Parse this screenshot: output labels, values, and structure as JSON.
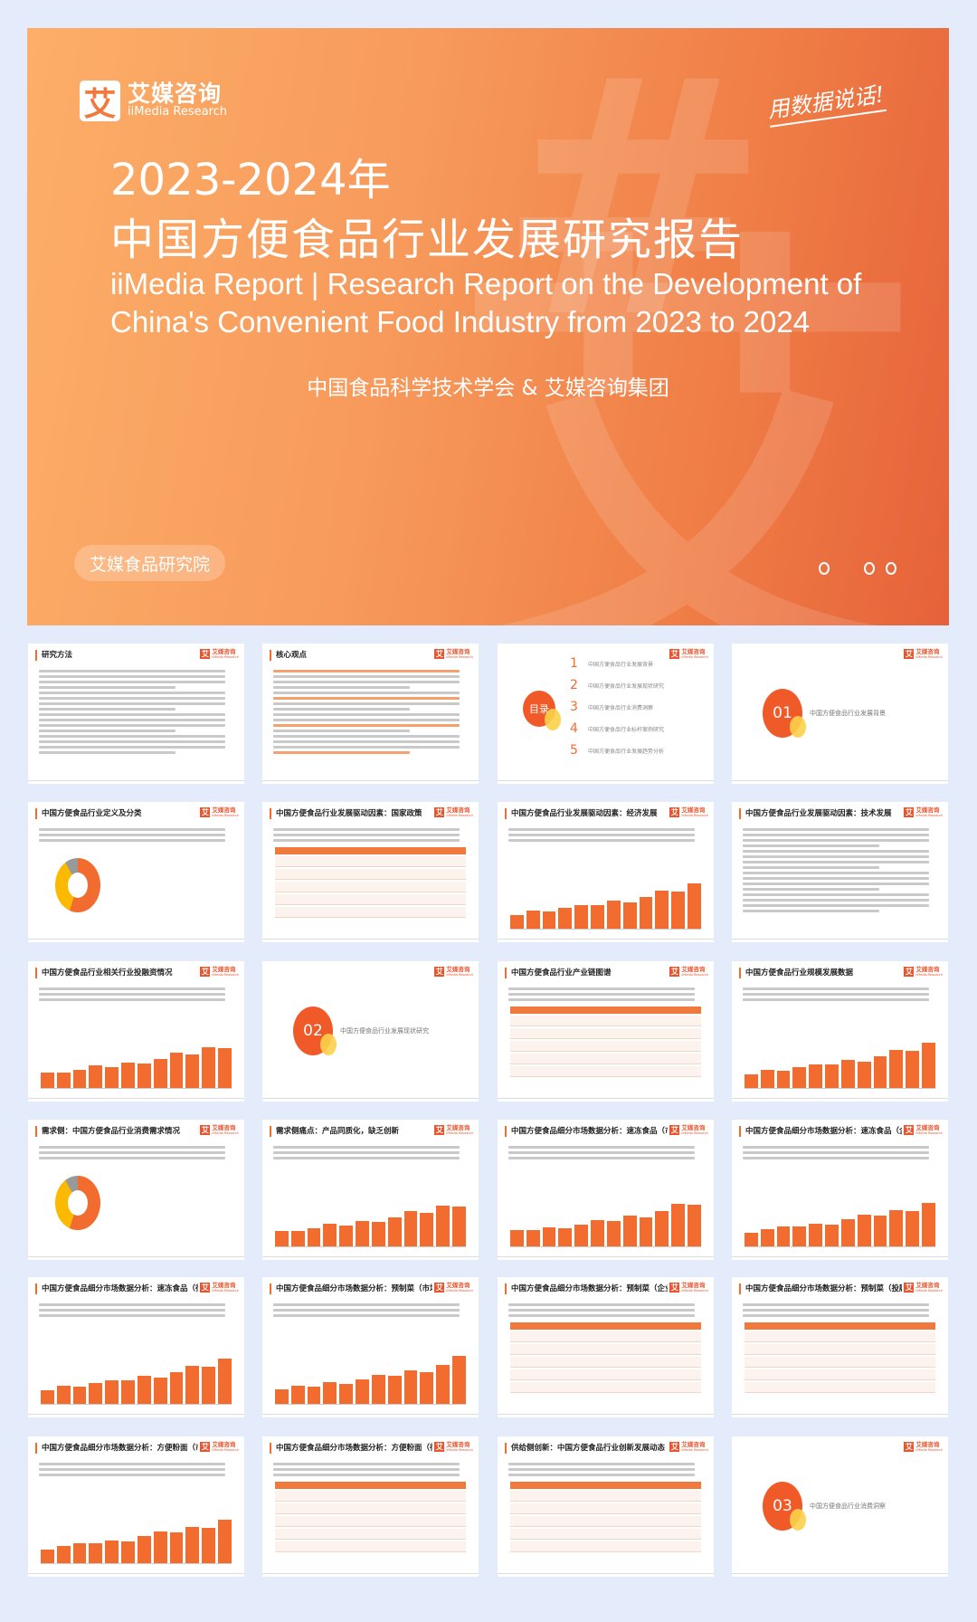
{
  "cover": {
    "logo_cn": "艾媒咨询",
    "logo_en": "iiMedia Research",
    "logo_mark": "艾",
    "slogan": "用数据说话!",
    "title_year": "2023-2024年",
    "title_cn": "中国方便食品行业发展研究报告",
    "title_en": "iiMedia Report | Research Report on the Development of China's Convenient Food Industry from 2023 to 2024",
    "publishers": "中国食品科学技术学会 & 艾媒咨询集团",
    "institute": "艾媒食品研究院",
    "watermark": "艾",
    "colors": {
      "gradient_start": "#fdae68",
      "gradient_end": "#e6623a"
    }
  },
  "slide_logo": {
    "mark": "艾",
    "cn": "艾媒咨询",
    "en": "iiMedia Research"
  },
  "toc": {
    "label": "目录",
    "items": [
      {
        "num": "1",
        "text": "中国方便食品行业发展背景"
      },
      {
        "num": "2",
        "text": "中国方便食品行业发展现状研究"
      },
      {
        "num": "3",
        "text": "中国方便食品行业消费洞察"
      },
      {
        "num": "4",
        "text": "中国方便食品行业标杆案例研究"
      },
      {
        "num": "5",
        "text": "中国方便食品行业发展趋势分析"
      }
    ]
  },
  "slides": [
    {
      "kind": "text",
      "title": "研究方法"
    },
    {
      "kind": "text2",
      "title": "核心观点"
    },
    {
      "kind": "toc",
      "title": ""
    },
    {
      "kind": "section",
      "title": "",
      "num": "01",
      "label": "中国方便食品行业发展背景"
    },
    {
      "kind": "donut",
      "title": "中国方便食品行业定义及分类"
    },
    {
      "kind": "table",
      "title": "中国方便食品行业发展驱动因素：国家政策"
    },
    {
      "kind": "bars",
      "title": "中国方便食品行业发展驱动因素：经济发展"
    },
    {
      "kind": "text",
      "title": "中国方便食品行业发展驱动因素：技术发展"
    },
    {
      "kind": "bars",
      "title": "中国方便食品行业相关行业投融资情况"
    },
    {
      "kind": "section",
      "title": "",
      "num": "02",
      "label": "中国方便食品行业发展现状研究"
    },
    {
      "kind": "table",
      "title": "中国方便食品行业产业链图谱"
    },
    {
      "kind": "bars",
      "title": "中国方便食品行业规模发展数据"
    },
    {
      "kind": "donut",
      "title": "需求侧：中国方便食品行业消费需求情况"
    },
    {
      "kind": "bars",
      "title": "需求侧痛点：产品同质化，缺乏创新"
    },
    {
      "kind": "bars",
      "title": "中国方便食品细分市场数据分析：速冻食品（市场规模）"
    },
    {
      "kind": "bars",
      "title": "中国方便食品细分市场数据分析：速冻食品（企业分布）"
    },
    {
      "kind": "bars",
      "title": "中国方便食品细分市场数据分析：速冻食品（行业概况）"
    },
    {
      "kind": "bars",
      "title": "中国方便食品细分市场数据分析：预制菜（市场规模）"
    },
    {
      "kind": "table",
      "title": "中国方便食品细分市场数据分析：预制菜（企业概况）"
    },
    {
      "kind": "table",
      "title": "中国方便食品细分市场数据分析：预制菜（投融资情况）"
    },
    {
      "kind": "bars",
      "title": "中国方便食品细分市场数据分析：方便粉面（市场规模）"
    },
    {
      "kind": "table",
      "title": "中国方便食品细分市场数据分析：方便粉面（行业痛点）"
    },
    {
      "kind": "table",
      "title": "供给侧创新：中国方便食品行业创新发展动态"
    },
    {
      "kind": "section",
      "title": "",
      "num": "03",
      "label": "中国方便食品行业消费洞察"
    }
  ]
}
